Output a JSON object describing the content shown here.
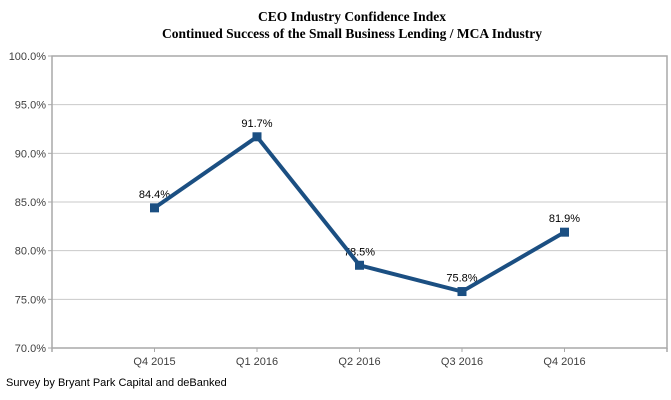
{
  "title": {
    "line1": "CEO Industry Confidence Index",
    "line2": "Continued Success of the Small Business Lending / MCA Industry"
  },
  "footer": "Survey by Bryant Park Capital and deBanked",
  "chart_data": {
    "type": "line",
    "title": "CEO Industry Confidence Index",
    "subtitle": "Continued Success of the Small Business Lending / MCA Industry",
    "xlabel": "",
    "ylabel": "",
    "categories": [
      "Q4 2015",
      "Q1 2016",
      "Q2 2016",
      "Q3 2016",
      "Q4 2016"
    ],
    "series": [
      {
        "name": "CEO Industry Confidence Index",
        "values": [
          84.4,
          91.7,
          78.5,
          75.8,
          81.9
        ],
        "data_labels": [
          "84.4%",
          "91.7%",
          "78.5%",
          "75.8%",
          "81.9%"
        ]
      }
    ],
    "ylim": [
      70,
      100
    ],
    "y_tick_step": 5,
    "y_tick_values": [
      100,
      95,
      90,
      85,
      80,
      75,
      70
    ],
    "y_tick_labels": [
      "100.0%",
      "95.0%",
      "90.0%",
      "85.0%",
      "80.0%",
      "75.0%",
      "70.0%"
    ],
    "grid": true,
    "legend": "none",
    "marker_style": "square",
    "annotation": "Survey by Bryant Park Capital and deBanked",
    "colors": {
      "line": "#1B4F82",
      "marker": "#1B4F82",
      "gridline": "#C9C9C9",
      "axis": "#A9A9A9",
      "axis_label": "#404040",
      "data_label": "#000000",
      "title": "#000000"
    }
  }
}
